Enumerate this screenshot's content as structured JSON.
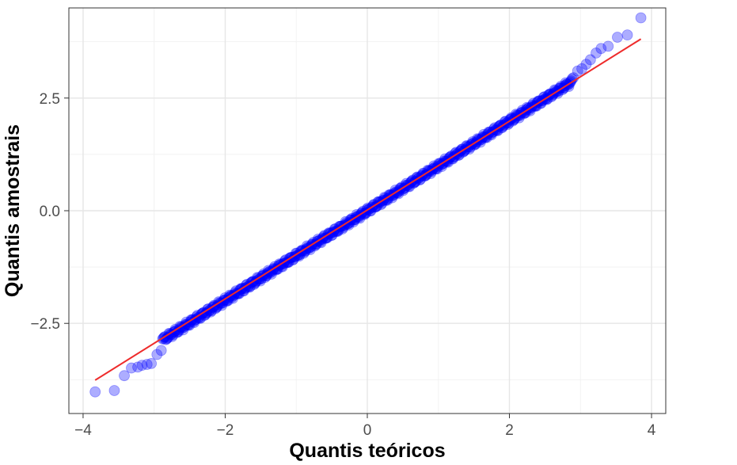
{
  "chart_data": {
    "type": "scatter",
    "title": "",
    "xlabel": "Quantis teóricos",
    "ylabel": "Quantis amostrais",
    "xlim": [
      -4.2,
      4.2
    ],
    "ylim": [
      -4.5,
      4.5
    ],
    "x_ticks": [
      -4,
      -2,
      0,
      2,
      4
    ],
    "x_tick_labels": [
      "−4",
      "−2",
      "0",
      "2",
      "4"
    ],
    "y_ticks": [
      -2.5,
      0,
      2.5
    ],
    "y_tick_labels": [
      "−2.5",
      "0.0",
      "2.5"
    ],
    "grid": true,
    "legend": "none",
    "point_color": "#0000ff",
    "point_alpha": 0.32,
    "line_color": "#ee2b2b",
    "reference_line": {
      "x": [
        -3.83,
        3.85
      ],
      "y": [
        -3.76,
        3.81
      ]
    },
    "outlier_points": [
      {
        "x": -3.83,
        "y": -4.02
      },
      {
        "x": -3.56,
        "y": -3.99
      },
      {
        "x": -3.42,
        "y": -3.66
      },
      {
        "x": -3.32,
        "y": -3.49
      },
      {
        "x": -3.23,
        "y": -3.47
      },
      {
        "x": -3.17,
        "y": -3.43
      },
      {
        "x": -3.1,
        "y": -3.41
      },
      {
        "x": -3.04,
        "y": -3.39
      },
      {
        "x": -2.96,
        "y": -3.19
      },
      {
        "x": -2.9,
        "y": -3.1
      },
      {
        "x": 2.9,
        "y": 2.95
      },
      {
        "x": 2.96,
        "y": 3.1
      },
      {
        "x": 3.02,
        "y": 3.15
      },
      {
        "x": 3.08,
        "y": 3.25
      },
      {
        "x": 3.14,
        "y": 3.35
      },
      {
        "x": 3.22,
        "y": 3.5
      },
      {
        "x": 3.29,
        "y": 3.6
      },
      {
        "x": 3.39,
        "y": 3.65
      },
      {
        "x": 3.52,
        "y": 3.85
      },
      {
        "x": 3.66,
        "y": 3.9
      },
      {
        "x": 3.85,
        "y": 4.28
      }
    ],
    "bulk": {
      "x_range": [
        -2.88,
        2.88
      ],
      "n": 520
    }
  }
}
